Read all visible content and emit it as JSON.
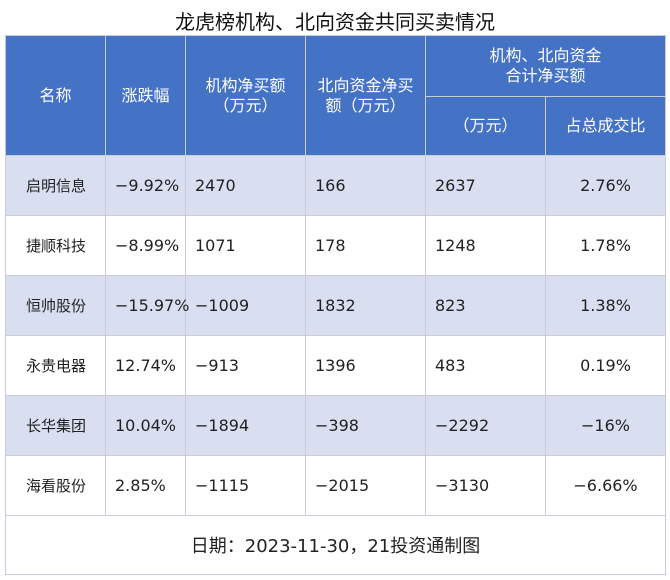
{
  "chart_data": {
    "type": "table",
    "title": "龙虎榜机构、北向资金共同买卖情况",
    "headers": {
      "name": "名称",
      "change": "涨跌幅",
      "inst_line1": "机构净买额",
      "inst_line2": "（万元）",
      "north_line1": "北向资金净买",
      "north_line2": "额（万元）",
      "combined_line1": "机构、北向资金",
      "combined_line2": "合计净买额",
      "combined_unit": "（万元）",
      "share": "占总成交比"
    },
    "rows": [
      {
        "name": "启明信息",
        "change": "−9.92%",
        "inst": "2470",
        "north": "166",
        "combined": "2637",
        "share": "2.76%"
      },
      {
        "name": "捷顺科技",
        "change": "−8.99%",
        "inst": "1071",
        "north": "178",
        "combined": "1248",
        "share": "1.78%"
      },
      {
        "name": "恒帅股份",
        "change": "−15.97%",
        "inst": "−1009",
        "north": "1832",
        "combined": "823",
        "share": "1.38%"
      },
      {
        "name": "永贵电器",
        "change": "12.74%",
        "inst": "−913",
        "north": "1396",
        "combined": "483",
        "share": "0.19%"
      },
      {
        "name": "长华集团",
        "change": "10.04%",
        "inst": "−1894",
        "north": "−398",
        "combined": "−2292",
        "share": "−16%"
      },
      {
        "name": "海看股份",
        "change": "2.85%",
        "inst": "−1115",
        "north": "−2015",
        "combined": "−3130",
        "share": "−6.66%"
      }
    ],
    "footer": "日期：2023-11-30，21投资通制图"
  }
}
